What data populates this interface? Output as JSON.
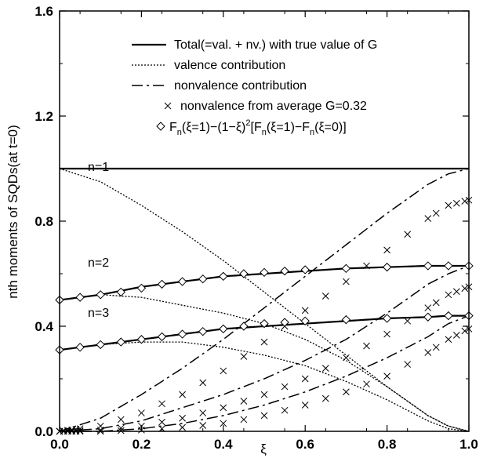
{
  "chart_data": {
    "type": "line",
    "xlabel": "ξ",
    "ylabel": "nth moments of SQDs(at t=0)",
    "xlim": [
      0.0,
      1.0
    ],
    "ylim": [
      0.0,
      1.6
    ],
    "x_ticks": [
      "0.0",
      "0.2",
      "0.4",
      "0.6",
      "0.8",
      "1.0"
    ],
    "y_ticks": [
      "0.0",
      "0.4",
      "0.8",
      "1.2",
      "1.6"
    ],
    "grid": false,
    "legend_position": "top-right",
    "legend": {
      "total": "Total(=val. + nv.) with true value of G",
      "valence": "valence contribution",
      "nonvalence": "nonvalence contribution",
      "cross": "nonvalence from average G=0.32",
      "diamond": [
        "F",
        "n",
        "(ξ=1)−(1−ξ)",
        "2",
        "[F",
        "n",
        "(ξ=1)−F",
        "n",
        "(ξ=0)]"
      ]
    },
    "annotations": {
      "n1": "n=1",
      "n2": "n=2",
      "n3": "n=3"
    },
    "x": [
      0.0,
      0.1,
      0.2,
      0.3,
      0.4,
      0.5,
      0.6,
      0.7,
      0.8,
      0.9,
      0.95,
      1.0
    ],
    "series": [
      {
        "group": "n=1",
        "style": "total",
        "values": [
          1.0,
          1.0,
          1.0,
          1.0,
          1.0,
          1.0,
          1.0,
          1.0,
          1.0,
          1.0,
          1.0,
          1.0
        ]
      },
      {
        "group": "n=1",
        "style": "valence",
        "values": [
          1.0,
          0.95,
          0.86,
          0.76,
          0.65,
          0.53,
          0.41,
          0.29,
          0.17,
          0.06,
          0.02,
          0.0
        ]
      },
      {
        "group": "n=1",
        "style": "nonvalence",
        "values": [
          0.0,
          0.05,
          0.14,
          0.24,
          0.35,
          0.47,
          0.59,
          0.71,
          0.83,
          0.94,
          0.98,
          1.0
        ]
      },
      {
        "group": "n=1",
        "style": "cross",
        "values": [
          0.0,
          0.02,
          0.07,
          0.14,
          0.23,
          0.34,
          0.46,
          0.57,
          0.69,
          0.81,
          0.86,
          0.88
        ]
      },
      {
        "group": "n=2",
        "style": "total",
        "values": [
          0.5,
          0.52,
          0.55,
          0.57,
          0.59,
          0.6,
          0.61,
          0.62,
          0.625,
          0.63,
          0.63,
          0.63
        ]
      },
      {
        "group": "n=2",
        "style": "valence",
        "values": [
          0.5,
          0.52,
          0.51,
          0.48,
          0.45,
          0.41,
          0.35,
          0.27,
          0.17,
          0.06,
          0.02,
          0.0
        ]
      },
      {
        "group": "n=2",
        "style": "nonvalence",
        "values": [
          0.0,
          0.01,
          0.04,
          0.09,
          0.14,
          0.2,
          0.27,
          0.35,
          0.45,
          0.56,
          0.6,
          0.63
        ]
      },
      {
        "group": "n=2",
        "style": "cross",
        "values": [
          0.0,
          0.005,
          0.02,
          0.05,
          0.09,
          0.14,
          0.2,
          0.28,
          0.37,
          0.47,
          0.52,
          0.55
        ]
      },
      {
        "group": "n=3",
        "style": "total",
        "values": [
          0.31,
          0.33,
          0.35,
          0.37,
          0.39,
          0.4,
          0.41,
          0.42,
          0.43,
          0.435,
          0.44,
          0.44
        ]
      },
      {
        "group": "n=3",
        "style": "valence",
        "values": [
          0.31,
          0.33,
          0.34,
          0.34,
          0.32,
          0.29,
          0.25,
          0.19,
          0.12,
          0.04,
          0.01,
          0.0
        ]
      },
      {
        "group": "n=3",
        "style": "nonvalence",
        "values": [
          0.0,
          0.0,
          0.01,
          0.03,
          0.06,
          0.1,
          0.15,
          0.21,
          0.28,
          0.36,
          0.41,
          0.44
        ]
      },
      {
        "group": "n=3",
        "style": "cross",
        "values": [
          0.0,
          0.0,
          0.005,
          0.015,
          0.03,
          0.06,
          0.1,
          0.15,
          0.21,
          0.3,
          0.35,
          0.39
        ]
      }
    ],
    "diamond_points": {
      "n=2": [
        0.5,
        0.51,
        0.52,
        0.53,
        0.545,
        0.56,
        0.57,
        0.58,
        0.59,
        0.6,
        0.605,
        0.61,
        0.615,
        0.62,
        0.625,
        0.63,
        0.63,
        0.63
      ],
      "n=3": [
        0.31,
        0.32,
        0.33,
        0.34,
        0.35,
        0.36,
        0.37,
        0.38,
        0.39,
        0.4,
        0.41,
        0.415,
        0.42,
        0.425,
        0.43,
        0.435,
        0.44,
        0.44
      ]
    },
    "diamond_x": [
      0.0,
      0.05,
      0.1,
      0.15,
      0.2,
      0.25,
      0.3,
      0.35,
      0.4,
      0.45,
      0.5,
      0.55,
      0.6,
      0.7,
      0.8,
      0.9,
      0.95,
      1.0
    ]
  }
}
